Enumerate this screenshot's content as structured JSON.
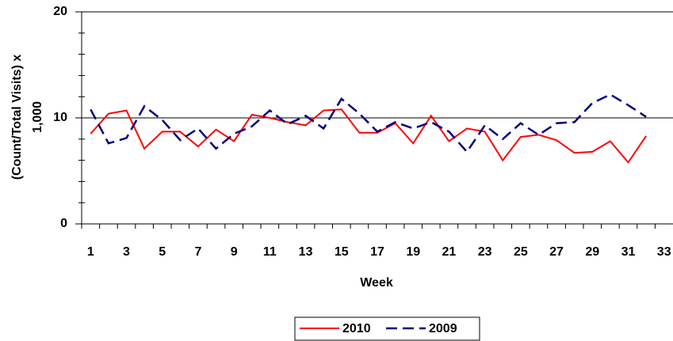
{
  "chart_data": {
    "type": "line",
    "xlabel": "Week",
    "ylabel": [
      "(Count/Total Visits) x",
      "1,000"
    ],
    "categories": [
      "1",
      null,
      "3",
      null,
      "5",
      null,
      "7",
      null,
      "9",
      null,
      "11",
      null,
      "13",
      null,
      "15",
      null,
      "17",
      null,
      "19",
      null,
      "21",
      null,
      "23",
      null,
      "25",
      null,
      "27",
      null,
      "29",
      null,
      "31",
      null,
      "33"
    ],
    "series": [
      {
        "name": "2010",
        "color": "#ff0000",
        "dash": false,
        "values": [
          8.5,
          10.4,
          10.7,
          7.1,
          8.7,
          8.7,
          7.3,
          8.9,
          7.8,
          10.3,
          10.0,
          9.6,
          9.3,
          10.7,
          10.8,
          8.6,
          8.6,
          9.5,
          7.6,
          10.2,
          7.8,
          9.0,
          8.7,
          6.0,
          8.2,
          8.4,
          7.9,
          6.7,
          6.8,
          7.8,
          5.8,
          8.3,
          null
        ]
      },
      {
        "name": "2009",
        "color": "#000080",
        "dash": true,
        "values": [
          10.8,
          7.6,
          8.1,
          11.1,
          9.8,
          7.9,
          9.0,
          7.1,
          8.5,
          9.2,
          10.7,
          9.4,
          10.2,
          9.0,
          11.8,
          10.4,
          8.7,
          9.6,
          9.0,
          9.6,
          8.7,
          6.8,
          9.3,
          8.0,
          9.5,
          8.4,
          9.5,
          9.6,
          11.4,
          12.2,
          11.2,
          10.1,
          null
        ]
      }
    ],
    "ylim": [
      0,
      20
    ],
    "yticks": [
      0,
      10,
      20
    ],
    "grid": true
  }
}
